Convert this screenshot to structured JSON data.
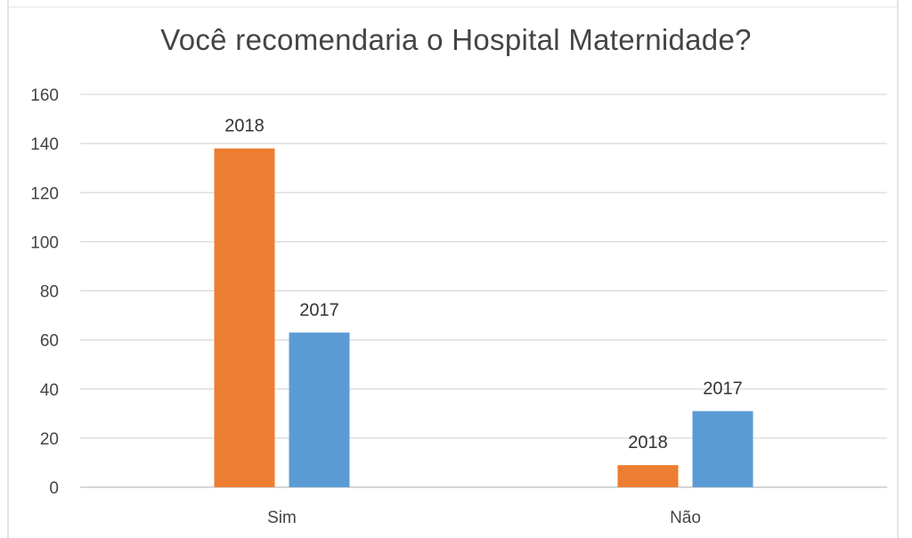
{
  "chart_data": {
    "type": "bar",
    "title": "Você recomendaria o Hospital Maternidade?",
    "categories": [
      "Sim",
      "Não"
    ],
    "series": [
      {
        "name": "2018",
        "color": "#ED7D31",
        "values": [
          138,
          9
        ],
        "labels": [
          "2018",
          "2018"
        ]
      },
      {
        "name": "2017",
        "color": "#5B9BD5",
        "values": [
          63,
          31
        ],
        "labels": [
          "2017",
          "2017"
        ]
      }
    ],
    "yticks": [
      "0",
      "20",
      "40",
      "60",
      "80",
      "100",
      "120",
      "140",
      "160"
    ],
    "ylim": [
      0,
      160
    ],
    "grid": true,
    "legend": "none",
    "xlabel": "",
    "ylabel": ""
  }
}
